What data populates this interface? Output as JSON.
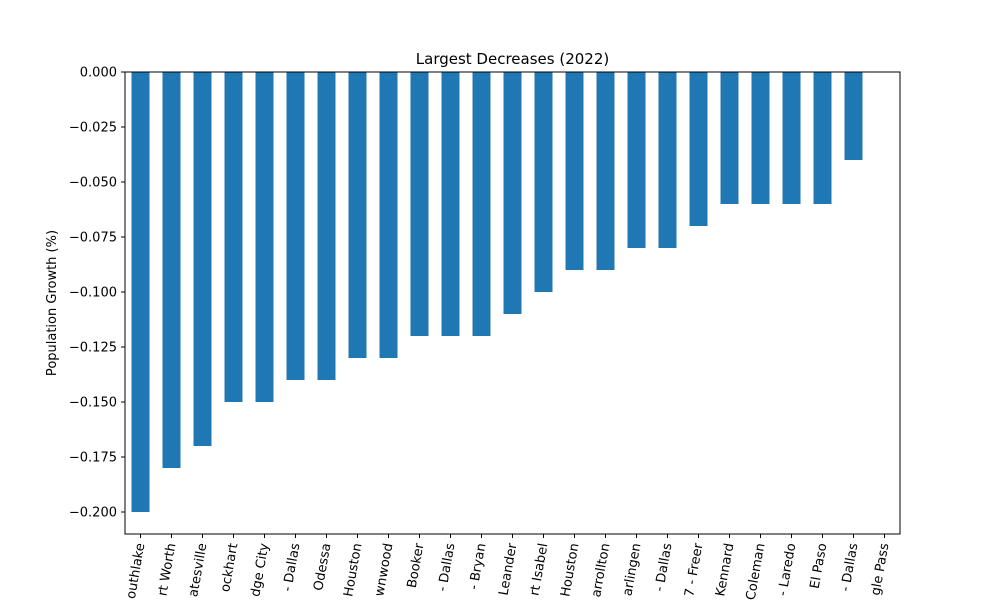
{
  "chart_data": {
    "type": "bar",
    "title": "Largest Decreases (2022)",
    "xlabel": "",
    "ylabel": "Population Growth (%)",
    "ylim": [
      -0.21,
      0.0
    ],
    "yticks": [
      "0.000",
      "−0.025",
      "−0.050",
      "−0.075",
      "−0.100",
      "−0.125",
      "−0.150",
      "−0.175",
      "−0.200"
    ],
    "ytick_values": [
      0.0,
      -0.025,
      -0.05,
      -0.075,
      -0.1,
      -0.125,
      -0.15,
      -0.175,
      -0.2
    ],
    "categories": [
      "outhlake",
      "rt Worth",
      "atesville",
      "ockhart",
      "dge City",
      "- Dallas",
      "Odessa",
      "Houston",
      "wnwood",
      "Booker",
      "- Dallas",
      "- Bryan",
      "Leander",
      "rt Isabel",
      "Houston",
      "arrollton",
      "arlingen",
      "- Dallas",
      "7 - Freer",
      "Kennard",
      "Coleman",
      "- Laredo",
      "El Paso",
      "- Dallas",
      "gle Pass"
    ],
    "values": [
      -0.2,
      -0.18,
      -0.17,
      -0.15,
      -0.15,
      -0.14,
      -0.14,
      -0.13,
      -0.13,
      -0.12,
      -0.12,
      -0.12,
      -0.11,
      -0.1,
      -0.09,
      -0.09,
      -0.08,
      -0.08,
      -0.07,
      -0.06,
      -0.06,
      -0.06,
      -0.06,
      -0.04,
      0.0
    ],
    "bar_color": "#1f77b4",
    "grid": false,
    "legend": "none"
  }
}
